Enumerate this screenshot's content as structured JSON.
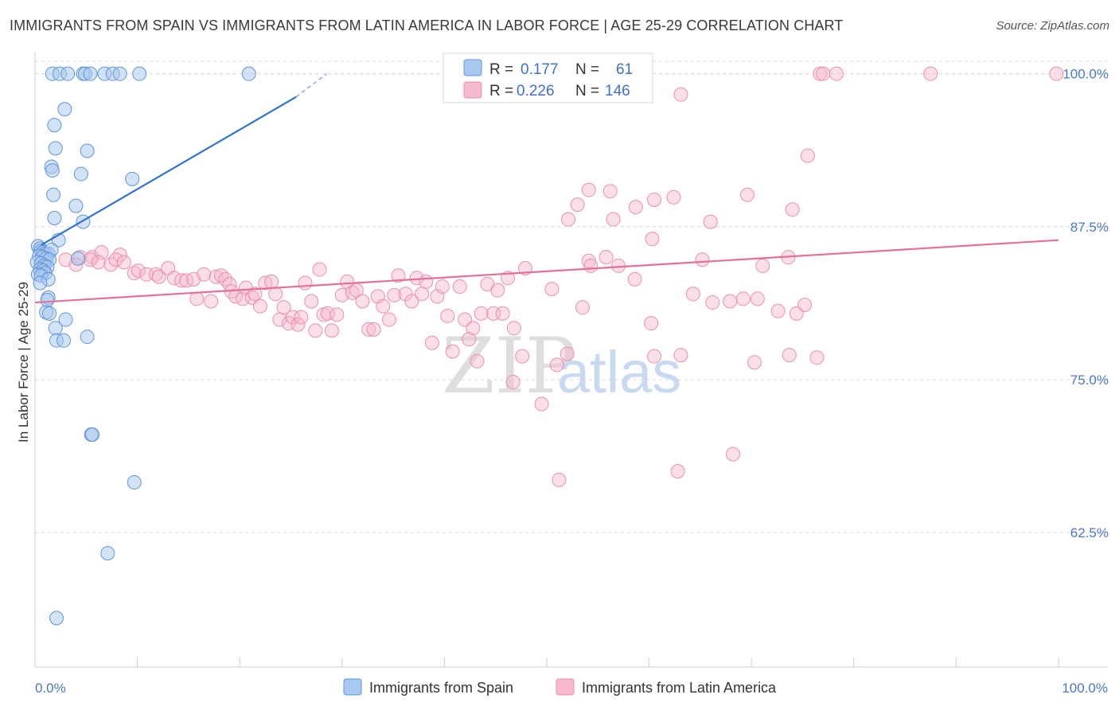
{
  "title": "IMMIGRANTS FROM SPAIN VS IMMIGRANTS FROM LATIN AMERICA IN LABOR FORCE | AGE 25-29 CORRELATION CHART",
  "source": "Source: ZipAtlas.com",
  "watermark": "ZIPatlas",
  "colors": {
    "spain_fill": "#a8c8f0",
    "spain_stroke": "#5f95d8",
    "spain_line": "#2f72cf",
    "latin_fill": "#f7b9cc",
    "latin_stroke": "#e98fae",
    "latin_line": "#e56f9a",
    "axis_text": "#4a78c8",
    "grid": "#d9d9d9"
  },
  "legend": {
    "rows": [
      {
        "r_label": "R =",
        "r_value": "0.177",
        "n_label": "N =",
        "n_value": "61"
      },
      {
        "r_label": "R =",
        "r_value": "0.226",
        "n_label": "N =",
        "n_value": "146"
      }
    ]
  },
  "bottom_legend": [
    "Immigrants from Spain",
    "Immigrants from Latin America"
  ],
  "chart_data": {
    "type": "scatter",
    "title": "IMMIGRANTS FROM SPAIN VS IMMIGRANTS FROM LATIN AMERICA IN LABOR FORCE | AGE 25-29 CORRELATION CHART",
    "xlabel": "",
    "ylabel": "In Labor Force | Age 25-29",
    "xlim": [
      0,
      100
    ],
    "ylim": [
      51.5,
      101.8
    ],
    "x_tick_labels": [
      "0.0%",
      "100.0%"
    ],
    "y_tick_labels": [
      "100.0%",
      "87.5%",
      "75.0%",
      "62.5%"
    ],
    "y_ticks": [
      100,
      87.5,
      75,
      62.5
    ],
    "series": [
      {
        "name": "Immigrants from Spain",
        "R": 0.177,
        "N": 61,
        "trend": {
          "x": [
            0.6,
            25.5
          ],
          "y": [
            86.0,
            98.1
          ],
          "dashed_to": [
            28.5,
            100.0
          ]
        },
        "points": [
          [
            1.7,
            100
          ],
          [
            2.4,
            100
          ],
          [
            3.2,
            100
          ],
          [
            4.7,
            100
          ],
          [
            4.9,
            100
          ],
          [
            5.4,
            100
          ],
          [
            6.8,
            100
          ],
          [
            7.6,
            100
          ],
          [
            8.3,
            100
          ],
          [
            10.2,
            100
          ],
          [
            20.9,
            100
          ],
          [
            2.9,
            97.1
          ],
          [
            1.9,
            95.8
          ],
          [
            2.0,
            93.9
          ],
          [
            5.1,
            93.7
          ],
          [
            1.6,
            92.4
          ],
          [
            1.7,
            92.1
          ],
          [
            4.5,
            91.8
          ],
          [
            9.5,
            91.4
          ],
          [
            1.8,
            90.1
          ],
          [
            4.0,
            89.2
          ],
          [
            1.9,
            88.2
          ],
          [
            4.7,
            87.9
          ],
          [
            2.3,
            86.4
          ],
          [
            0.3,
            85.9
          ],
          [
            0.5,
            85.7
          ],
          [
            0.6,
            85.5
          ],
          [
            0.8,
            85.4
          ],
          [
            1.0,
            85.3
          ],
          [
            1.3,
            85.3
          ],
          [
            1.6,
            85.6
          ],
          [
            0.4,
            85.1
          ],
          [
            0.7,
            85.0
          ],
          [
            1.1,
            84.9
          ],
          [
            1.4,
            84.8
          ],
          [
            4.2,
            84.9
          ],
          [
            0.2,
            84.6
          ],
          [
            0.6,
            84.5
          ],
          [
            0.9,
            84.3
          ],
          [
            1.2,
            84.2
          ],
          [
            0.5,
            84.0
          ],
          [
            0.8,
            83.9
          ],
          [
            1.0,
            83.7
          ],
          [
            0.3,
            83.6
          ],
          [
            0.6,
            83.5
          ],
          [
            1.3,
            83.2
          ],
          [
            0.5,
            82.9
          ],
          [
            1.3,
            81.7
          ],
          [
            1.2,
            81.5
          ],
          [
            1.1,
            80.5
          ],
          [
            1.4,
            80.4
          ],
          [
            3.0,
            79.9
          ],
          [
            2.0,
            79.2
          ],
          [
            5.1,
            78.5
          ],
          [
            2.1,
            78.2
          ],
          [
            2.8,
            78.2
          ],
          [
            5.5,
            70.5
          ],
          [
            5.6,
            70.5
          ],
          [
            9.7,
            66.6
          ],
          [
            7.1,
            60.8
          ],
          [
            2.1,
            55.5
          ]
        ]
      },
      {
        "name": "Immigrants from Latin America",
        "R": 0.226,
        "N": 146,
        "trend": {
          "x": [
            0,
            100
          ],
          "y": [
            81.3,
            86.4
          ]
        },
        "points": [
          [
            76.7,
            100
          ],
          [
            77.0,
            100
          ],
          [
            78.3,
            100
          ],
          [
            87.5,
            100
          ],
          [
            99.8,
            100
          ],
          [
            63.1,
            98.3
          ],
          [
            75.5,
            93.3
          ],
          [
            54.1,
            90.5
          ],
          [
            56.2,
            90.4
          ],
          [
            69.6,
            90.1
          ],
          [
            60.5,
            89.7
          ],
          [
            62.4,
            89.9
          ],
          [
            53.0,
            89.3
          ],
          [
            58.7,
            89.1
          ],
          [
            74.0,
            88.9
          ],
          [
            52.1,
            88.1
          ],
          [
            56.5,
            88.1
          ],
          [
            66.0,
            87.9
          ],
          [
            60.3,
            86.5
          ],
          [
            4.4,
            85.0
          ],
          [
            5.6,
            85.0
          ],
          [
            6.5,
            85.4
          ],
          [
            8.3,
            85.2
          ],
          [
            3.0,
            84.8
          ],
          [
            4.0,
            84.4
          ],
          [
            5.4,
            84.8
          ],
          [
            6.2,
            84.6
          ],
          [
            7.4,
            84.4
          ],
          [
            7.9,
            84.8
          ],
          [
            8.7,
            84.6
          ],
          [
            9.7,
            83.7
          ],
          [
            10.1,
            83.9
          ],
          [
            10.9,
            83.6
          ],
          [
            11.8,
            83.6
          ],
          [
            12.1,
            83.4
          ],
          [
            13.0,
            84.1
          ],
          [
            13.6,
            83.3
          ],
          [
            14.3,
            83.1
          ],
          [
            14.8,
            83.1
          ],
          [
            15.5,
            83.2
          ],
          [
            15.8,
            81.6
          ],
          [
            16.5,
            83.6
          ],
          [
            17.2,
            81.4
          ],
          [
            17.7,
            83.4
          ],
          [
            18.2,
            83.5
          ],
          [
            18.6,
            83.2
          ],
          [
            19.0,
            82.8
          ],
          [
            19.2,
            82.2
          ],
          [
            19.6,
            81.8
          ],
          [
            20.3,
            81.6
          ],
          [
            20.6,
            82.5
          ],
          [
            21.2,
            81.7
          ],
          [
            21.5,
            82.0
          ],
          [
            22.0,
            81.0
          ],
          [
            22.5,
            82.9
          ],
          [
            23.1,
            83.0
          ],
          [
            23.5,
            82.0
          ],
          [
            23.9,
            79.9
          ],
          [
            24.3,
            80.9
          ],
          [
            24.8,
            79.6
          ],
          [
            25.2,
            80.1
          ],
          [
            25.7,
            79.5
          ],
          [
            26.0,
            80.1
          ],
          [
            26.4,
            82.9
          ],
          [
            27.0,
            81.4
          ],
          [
            27.4,
            79.0
          ],
          [
            27.8,
            84.0
          ],
          [
            28.2,
            80.3
          ],
          [
            28.6,
            80.4
          ],
          [
            29.0,
            79.0
          ],
          [
            29.5,
            80.3
          ],
          [
            30.0,
            81.9
          ],
          [
            30.5,
            83.0
          ],
          [
            31.0,
            82.1
          ],
          [
            31.4,
            82.3
          ],
          [
            32.0,
            81.4
          ],
          [
            32.6,
            79.1
          ],
          [
            33.1,
            79.1
          ],
          [
            33.5,
            81.8
          ],
          [
            34.0,
            81.0
          ],
          [
            34.6,
            79.9
          ],
          [
            35.1,
            81.9
          ],
          [
            35.5,
            83.5
          ],
          [
            36.2,
            82.0
          ],
          [
            36.8,
            81.4
          ],
          [
            37.3,
            83.3
          ],
          [
            37.8,
            82.0
          ],
          [
            38.2,
            83.0
          ],
          [
            38.8,
            78.0
          ],
          [
            39.3,
            81.8
          ],
          [
            39.8,
            82.6
          ],
          [
            40.3,
            80.2
          ],
          [
            40.8,
            77.3
          ],
          [
            41.5,
            82.6
          ],
          [
            42.0,
            79.9
          ],
          [
            42.4,
            78.3
          ],
          [
            42.8,
            79.2
          ],
          [
            43.2,
            76.5
          ],
          [
            43.6,
            80.4
          ],
          [
            44.2,
            82.8
          ],
          [
            44.8,
            80.4
          ],
          [
            45.2,
            82.3
          ],
          [
            45.7,
            80.4
          ],
          [
            46.2,
            83.3
          ],
          [
            46.8,
            79.2
          ],
          [
            47.6,
            76.9
          ],
          [
            47.9,
            84.1
          ],
          [
            46.7,
            74.8
          ],
          [
            49.5,
            73.0
          ],
          [
            50.5,
            82.4
          ],
          [
            51.0,
            76.2
          ],
          [
            52.0,
            77.1
          ],
          [
            53.5,
            80.9
          ],
          [
            54.1,
            84.7
          ],
          [
            54.3,
            84.3
          ],
          [
            55.8,
            85.0
          ],
          [
            57.0,
            84.3
          ],
          [
            58.6,
            83.2
          ],
          [
            60.2,
            79.6
          ],
          [
            60.5,
            76.9
          ],
          [
            62.8,
            67.5
          ],
          [
            63.1,
            77.0
          ],
          [
            64.3,
            82.0
          ],
          [
            65.2,
            84.8
          ],
          [
            66.2,
            81.3
          ],
          [
            67.9,
            81.4
          ],
          [
            69.2,
            81.6
          ],
          [
            70.6,
            81.6
          ],
          [
            72.6,
            80.6
          ],
          [
            75.2,
            81.1
          ],
          [
            70.3,
            76.4
          ],
          [
            73.7,
            77.0
          ],
          [
            71.1,
            84.3
          ],
          [
            73.6,
            85.0
          ],
          [
            74.4,
            80.4
          ],
          [
            68.2,
            68.9
          ],
          [
            51.2,
            66.8
          ],
          [
            76.4,
            76.8
          ]
        ]
      }
    ]
  }
}
